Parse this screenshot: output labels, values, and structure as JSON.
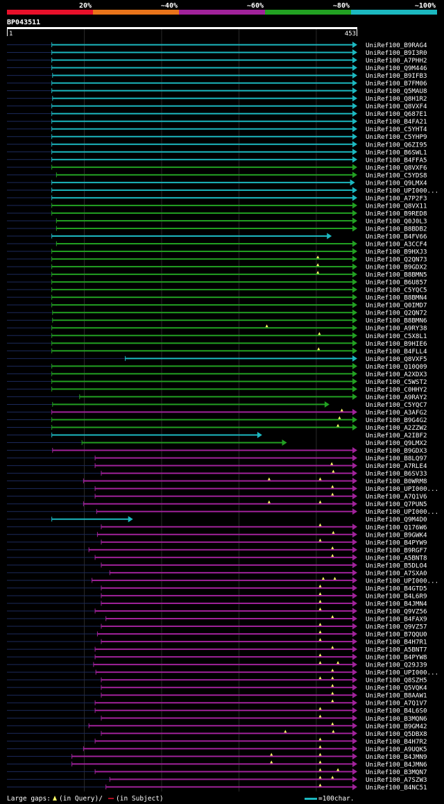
{
  "chart_data": {
    "type": "alignment-overview",
    "title": "BP043511",
    "query_start": "1",
    "query_end": "453",
    "scale_max": 453,
    "identity_legend": [
      {
        "label": "20%",
        "color": "#e8102a"
      },
      {
        "label": "~40%",
        "color": "#e8731a"
      },
      {
        "label": "~60%",
        "color": "#a0229a"
      },
      {
        "label": "~80%",
        "color": "#22a022"
      },
      {
        "label": "~100%",
        "color": "#1cb8c0"
      }
    ],
    "footer": {
      "large_gaps_label": "Large gaps:",
      "in_query_label": "(in Query)/",
      "in_subject_label": "(in Subject)",
      "scale_label": "=100char."
    },
    "hits": [
      {
        "name": "UniRef100_B9RAG4",
        "start": 58,
        "end": 453,
        "identity": "~100%",
        "gaps": []
      },
      {
        "name": "UniRef100_B9I3R0",
        "start": 58,
        "end": 453,
        "identity": "~100%",
        "gaps": []
      },
      {
        "name": "UniRef100_A7PHH2",
        "start": 58,
        "end": 453,
        "identity": "~100%",
        "gaps": []
      },
      {
        "name": "UniRef100_Q9M446",
        "start": 58,
        "end": 453,
        "identity": "~100%",
        "gaps": []
      },
      {
        "name": "UniRef100_B9IFB3",
        "start": 59,
        "end": 453,
        "identity": "~100%",
        "gaps": []
      },
      {
        "name": "UniRef100_B7FM06",
        "start": 58,
        "end": 453,
        "identity": "~100%",
        "gaps": []
      },
      {
        "name": "UniRef100_Q5MAU8",
        "start": 58,
        "end": 453,
        "identity": "~100%",
        "gaps": []
      },
      {
        "name": "UniRef100_Q8H1R2",
        "start": 59,
        "end": 453,
        "identity": "~100%",
        "gaps": []
      },
      {
        "name": "UniRef100_Q8VXF4",
        "start": 58,
        "end": 453,
        "identity": "~100%",
        "gaps": []
      },
      {
        "name": "UniRef100_Q687E1",
        "start": 58,
        "end": 453,
        "identity": "~100%",
        "gaps": []
      },
      {
        "name": "UniRef100_B4FA21",
        "start": 58,
        "end": 453,
        "identity": "~100%",
        "gaps": []
      },
      {
        "name": "UniRef100_C5YHT4",
        "start": 58,
        "end": 453,
        "identity": "~100%",
        "gaps": []
      },
      {
        "name": "UniRef100_C5YHP9",
        "start": 58,
        "end": 453,
        "identity": "~100%",
        "gaps": []
      },
      {
        "name": "UniRef100_Q6ZI95",
        "start": 58,
        "end": 453,
        "identity": "~100%",
        "gaps": []
      },
      {
        "name": "UniRef100_B6SWL1",
        "start": 58,
        "end": 453,
        "identity": "~100%",
        "gaps": []
      },
      {
        "name": "UniRef100_B4FFA5",
        "start": 58,
        "end": 453,
        "identity": "~100%",
        "gaps": []
      },
      {
        "name": "UniRef100_Q8VXF6",
        "start": 58,
        "end": 453,
        "identity": "~80%",
        "gaps": []
      },
      {
        "name": "UniRef100_C5YDS8",
        "start": 64,
        "end": 453,
        "identity": "~80%",
        "gaps": []
      },
      {
        "name": "UniRef100_Q9LMX4",
        "start": 58,
        "end": 450,
        "identity": "~100%",
        "gaps": []
      },
      {
        "name": "UniRef100_UPI000...",
        "start": 58,
        "end": 453,
        "identity": "~100%",
        "gaps": []
      },
      {
        "name": "UniRef100_A7P2F3",
        "start": 58,
        "end": 453,
        "identity": "~100%",
        "gaps": []
      },
      {
        "name": "UniRef100_Q8VX11",
        "start": 58,
        "end": 453,
        "identity": "~80%",
        "gaps": []
      },
      {
        "name": "UniRef100_B9RED8",
        "start": 58,
        "end": 453,
        "identity": "~80%",
        "gaps": []
      },
      {
        "name": "UniRef100_Q0J0L3",
        "start": 64,
        "end": 453,
        "identity": "~80%",
        "gaps": []
      },
      {
        "name": "UniRef100_B8BDB2",
        "start": 64,
        "end": 453,
        "identity": "~80%",
        "gaps": []
      },
      {
        "name": "UniRef100_B4FV66",
        "start": 58,
        "end": 420,
        "identity": "~100%",
        "gaps": []
      },
      {
        "name": "UniRef100_A3CCF4",
        "start": 64,
        "end": 453,
        "identity": "~80%",
        "gaps": []
      },
      {
        "name": "UniRef100_B9HXJ3",
        "start": 58,
        "end": 453,
        "identity": "~80%",
        "gaps": []
      },
      {
        "name": "UniRef100_Q2QN73",
        "start": 58,
        "end": 453,
        "identity": "~80%",
        "gaps": [
          402
        ]
      },
      {
        "name": "UniRef100_B9GDX2",
        "start": 58,
        "end": 453,
        "identity": "~80%",
        "gaps": [
          402
        ]
      },
      {
        "name": "UniRef100_B8BMN5",
        "start": 58,
        "end": 453,
        "identity": "~80%",
        "gaps": [
          402
        ]
      },
      {
        "name": "UniRef100_B6U857",
        "start": 58,
        "end": 453,
        "identity": "~80%",
        "gaps": []
      },
      {
        "name": "UniRef100_C5YQC5",
        "start": 58,
        "end": 453,
        "identity": "~80%",
        "gaps": []
      },
      {
        "name": "UniRef100_B8BMN4",
        "start": 58,
        "end": 453,
        "identity": "~80%",
        "gaps": []
      },
      {
        "name": "UniRef100_Q0IMD7",
        "start": 58,
        "end": 453,
        "identity": "~80%",
        "gaps": []
      },
      {
        "name": "UniRef100_Q2QN72",
        "start": 59,
        "end": 453,
        "identity": "~80%",
        "gaps": []
      },
      {
        "name": "UniRef100_B8BMN6",
        "start": 59,
        "end": 453,
        "identity": "~80%",
        "gaps": []
      },
      {
        "name": "UniRef100_A9RY38",
        "start": 58,
        "end": 453,
        "identity": "~80%",
        "gaps": [
          336
        ]
      },
      {
        "name": "UniRef100_C5X8L1",
        "start": 58,
        "end": 453,
        "identity": "~80%",
        "gaps": [
          404
        ]
      },
      {
        "name": "UniRef100_B9HIE6",
        "start": 58,
        "end": 453,
        "identity": "~80%",
        "gaps": []
      },
      {
        "name": "UniRef100_B4FLL4",
        "start": 58,
        "end": 453,
        "identity": "~80%",
        "gaps": [
          403
        ]
      },
      {
        "name": "UniRef100_Q8VXF5",
        "start": 153,
        "end": 453,
        "identity": "~100%",
        "gaps": []
      },
      {
        "name": "UniRef100_Q10Q09",
        "start": 58,
        "end": 453,
        "identity": "~80%",
        "gaps": []
      },
      {
        "name": "UniRef100_A2XDX3",
        "start": 58,
        "end": 453,
        "identity": "~80%",
        "gaps": []
      },
      {
        "name": "UniRef100_C5WST2",
        "start": 58,
        "end": 453,
        "identity": "~80%",
        "gaps": []
      },
      {
        "name": "UniRef100_C0HHY2",
        "start": 58,
        "end": 453,
        "identity": "~80%",
        "gaps": []
      },
      {
        "name": "UniRef100_A9RAY2",
        "start": 94,
        "end": 453,
        "identity": "~80%",
        "gaps": []
      },
      {
        "name": "UniRef100_C5YQC7",
        "start": 59,
        "end": 417,
        "identity": "~80%",
        "gaps": []
      },
      {
        "name": "UniRef100_A3AFG2",
        "start": 58,
        "end": 453,
        "identity": "~60%",
        "gaps": [
          433
        ]
      },
      {
        "name": "UniRef100_B9G4G2",
        "start": 58,
        "end": 453,
        "identity": "~80%",
        "gaps": [
          430
        ]
      },
      {
        "name": "UniRef100_A2ZZW2",
        "start": 58,
        "end": 453,
        "identity": "~80%",
        "gaps": [
          428
        ]
      },
      {
        "name": "UniRef100_A2IBF2",
        "start": 58,
        "end": 330,
        "identity": "~100%",
        "gaps": []
      },
      {
        "name": "UniRef100_Q9LMX2",
        "start": 97,
        "end": 362,
        "identity": "~80%",
        "gaps": []
      },
      {
        "name": "UniRef100_B9GDX3",
        "start": 59,
        "end": 453,
        "identity": "~60%",
        "gaps": []
      },
      {
        "name": "UniRef100_B8LQ97",
        "start": 114,
        "end": 453,
        "identity": "~60%",
        "gaps": []
      },
      {
        "name": "UniRef100_A7RLE4",
        "start": 114,
        "end": 453,
        "identity": "~60%",
        "gaps": [
          420
        ]
      },
      {
        "name": "UniRef100_B6SV33",
        "start": 122,
        "end": 453,
        "identity": "~60%",
        "gaps": [
          422
        ]
      },
      {
        "name": "UniRef100_B0WRM8",
        "start": 99,
        "end": 453,
        "identity": "~60%",
        "gaps": [
          339,
          405
        ]
      },
      {
        "name": "UniRef100_UPI000...",
        "start": 114,
        "end": 453,
        "identity": "~60%",
        "gaps": [
          421
        ]
      },
      {
        "name": "UniRef100_A7Q1V6",
        "start": 114,
        "end": 453,
        "identity": "~60%",
        "gaps": [
          421
        ]
      },
      {
        "name": "UniRef100_Q7PUN5",
        "start": 99,
        "end": 453,
        "identity": "~60%",
        "gaps": [
          339,
          405
        ]
      },
      {
        "name": "UniRef100_UPI000...",
        "start": 116,
        "end": 453,
        "identity": "~60%",
        "gaps": []
      },
      {
        "name": "UniRef100_Q9M4D0",
        "start": 58,
        "end": 163,
        "identity": "~100%",
        "gaps": []
      },
      {
        "name": "UniRef100_Q176W6",
        "start": 122,
        "end": 453,
        "identity": "~60%",
        "gaps": [
          405
        ]
      },
      {
        "name": "UniRef100_B9GWK4",
        "start": 117,
        "end": 453,
        "identity": "~60%",
        "gaps": [
          422
        ]
      },
      {
        "name": "UniRef100_B4PYW9",
        "start": 122,
        "end": 453,
        "identity": "~60%",
        "gaps": [
          405
        ]
      },
      {
        "name": "UniRef100_B9RGF7",
        "start": 106,
        "end": 453,
        "identity": "~60%",
        "gaps": [
          421
        ]
      },
      {
        "name": "UniRef100_A5BNT8",
        "start": 114,
        "end": 453,
        "identity": "~60%",
        "gaps": [
          421
        ]
      },
      {
        "name": "UniRef100_B5DLO4",
        "start": 122,
        "end": 453,
        "identity": "~60%",
        "gaps": []
      },
      {
        "name": "UniRef100_A7SXA0",
        "start": 133,
        "end": 453,
        "identity": "~60%",
        "gaps": []
      },
      {
        "name": "UniRef100_UPI000...",
        "start": 110,
        "end": 453,
        "identity": "~60%",
        "gaps": [
          409,
          424
        ]
      },
      {
        "name": "UniRef100_B4GTD5",
        "start": 122,
        "end": 453,
        "identity": "~60%",
        "gaps": [
          405
        ]
      },
      {
        "name": "UniRef100_B4L6R9",
        "start": 122,
        "end": 453,
        "identity": "~60%",
        "gaps": [
          405
        ]
      },
      {
        "name": "UniRef100_B4JMN4",
        "start": 122,
        "end": 453,
        "identity": "~60%",
        "gaps": [
          405
        ]
      },
      {
        "name": "UniRef100_Q9VZ56",
        "start": 114,
        "end": 453,
        "identity": "~60%",
        "gaps": [
          405
        ]
      },
      {
        "name": "UniRef100_B4FAX9",
        "start": 128,
        "end": 453,
        "identity": "~60%",
        "gaps": [
          421
        ]
      },
      {
        "name": "UniRef100_Q9VZ57",
        "start": 122,
        "end": 453,
        "identity": "~60%",
        "gaps": [
          405
        ]
      },
      {
        "name": "UniRef100_B7QQU0",
        "start": 117,
        "end": 453,
        "identity": "~60%",
        "gaps": [
          405
        ]
      },
      {
        "name": "UniRef100_B4H7R1",
        "start": 122,
        "end": 453,
        "identity": "~60%",
        "gaps": [
          405
        ]
      },
      {
        "name": "UniRef100_A5BNT7",
        "start": 114,
        "end": 453,
        "identity": "~60%",
        "gaps": [
          421
        ]
      },
      {
        "name": "UniRef100_B4PYW8",
        "start": 114,
        "end": 453,
        "identity": "~60%",
        "gaps": [
          405
        ]
      },
      {
        "name": "UniRef100_Q29J39",
        "start": 112,
        "end": 453,
        "identity": "~60%",
        "gaps": [
          405,
          428
        ]
      },
      {
        "name": "UniRef100_UPI000...",
        "start": 115,
        "end": 453,
        "identity": "~60%",
        "gaps": [
          421
        ]
      },
      {
        "name": "UniRef100_Q8SZH5",
        "start": 122,
        "end": 453,
        "identity": "~60%",
        "gaps": [
          405,
          421
        ]
      },
      {
        "name": "UniRef100_Q5VQK4",
        "start": 122,
        "end": 453,
        "identity": "~60%",
        "gaps": [
          421
        ]
      },
      {
        "name": "UniRef100_B8AAW1",
        "start": 122,
        "end": 453,
        "identity": "~60%",
        "gaps": [
          421
        ]
      },
      {
        "name": "UniRef100_A7Q1V7",
        "start": 114,
        "end": 453,
        "identity": "~60%",
        "gaps": [
          421
        ]
      },
      {
        "name": "UniRef100_B4L6S0",
        "start": 114,
        "end": 453,
        "identity": "~60%",
        "gaps": [
          405
        ]
      },
      {
        "name": "UniRef100_B3MQN6",
        "start": 122,
        "end": 453,
        "identity": "~60%",
        "gaps": [
          405
        ]
      },
      {
        "name": "UniRef100_B9GM42",
        "start": 106,
        "end": 453,
        "identity": "~60%",
        "gaps": [
          421
        ]
      },
      {
        "name": "UniRef100_Q5DBX8",
        "start": 122,
        "end": 453,
        "identity": "~60%",
        "gaps": [
          360,
          422
        ]
      },
      {
        "name": "UniRef100_B4H7R2",
        "start": 114,
        "end": 453,
        "identity": "~60%",
        "gaps": [
          405
        ]
      },
      {
        "name": "UniRef100_A9UQK5",
        "start": 99,
        "end": 453,
        "identity": "~60%",
        "gaps": [
          405
        ]
      },
      {
        "name": "UniRef100_B4JMN9",
        "start": 84,
        "end": 453,
        "identity": "~60%",
        "gaps": [
          342,
          405
        ]
      },
      {
        "name": "UniRef100_B4JMN6",
        "start": 84,
        "end": 453,
        "identity": "~60%",
        "gaps": [
          342,
          405
        ]
      },
      {
        "name": "UniRef100_B3MQN7",
        "start": 114,
        "end": 453,
        "identity": "~60%",
        "gaps": [
          405,
          428
        ]
      },
      {
        "name": "UniRef100_A7SZW3",
        "start": 133,
        "end": 453,
        "identity": "~60%",
        "gaps": [
          405,
          421
        ]
      },
      {
        "name": "UniRef100_B4NC51",
        "start": 128,
        "end": 453,
        "identity": "~60%",
        "gaps": [
          405
        ]
      }
    ]
  }
}
